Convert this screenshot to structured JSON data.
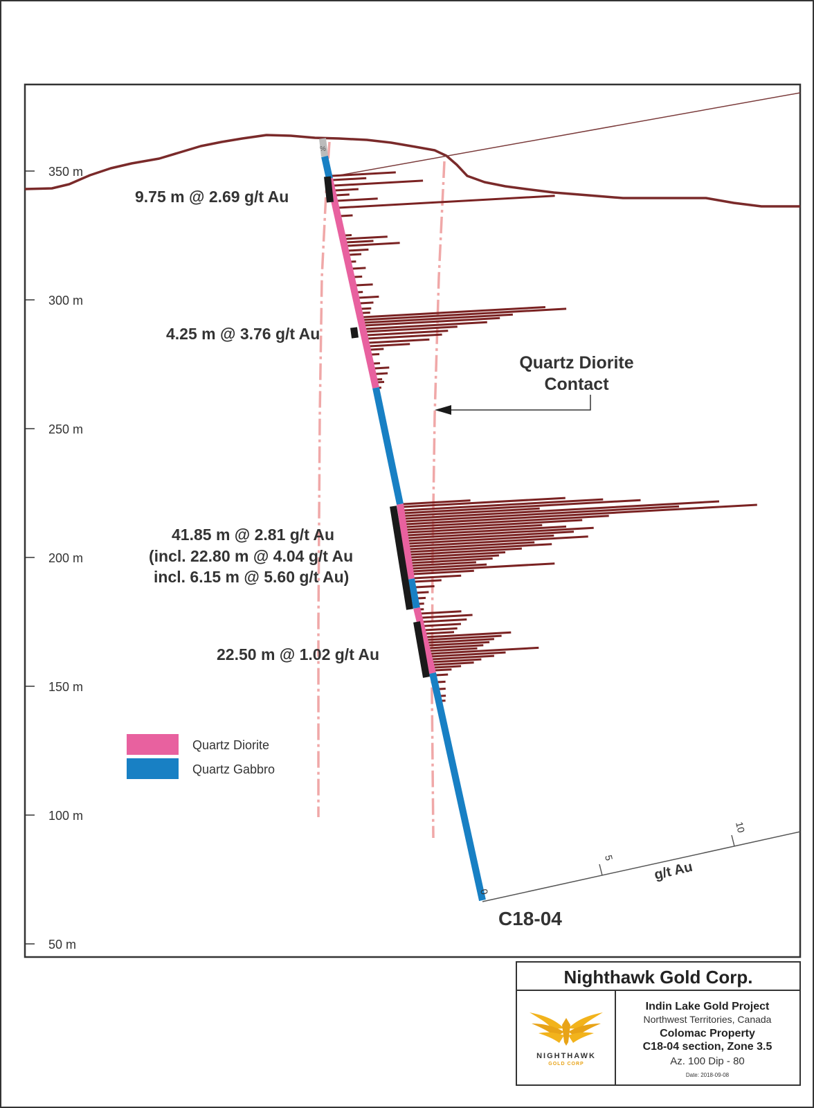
{
  "section": {
    "elevation_labels": [
      "350 m",
      "300 m",
      "250 m",
      "200 m",
      "150 m",
      "100 m",
      "50 m"
    ],
    "intercepts": [
      {
        "lines": [
          "9.75 m @ 2.69 g/t Au"
        ]
      },
      {
        "lines": [
          "4.25 m @ 3.76 g/t Au"
        ]
      },
      {
        "lines": [
          "41.85 m @ 2.81 g/t Au",
          "(incl. 22.80 m @ 4.04 g/t Au",
          "incl. 6.15 m @ 5.60 g/t Au)"
        ]
      },
      {
        "lines": [
          "22.50 m @ 1.02 g/t Au"
        ]
      }
    ],
    "contact_label": [
      "Quartz Diorite",
      "Contact"
    ],
    "hole_id": "C18-04",
    "collar_symbol": "%",
    "assay_scale": {
      "ticks": [
        "0",
        "5",
        "10"
      ],
      "unit": "g/t Au"
    },
    "legend": [
      {
        "label": "Quartz Diorite",
        "color": "#e8619f"
      },
      {
        "label": "Quartz Gabbro",
        "color": "#1880c4"
      }
    ],
    "colors": {
      "topography": "#7a2a2a",
      "assay_bar": "#7a2222",
      "contact_line": "#f0a8a8",
      "intercept_bar": "#1a1a1a",
      "frame": "#333333"
    }
  },
  "title_block": {
    "company": "Nighthawk Gold Corp.",
    "project": "Indin Lake Gold Project",
    "region": "Northwest Territories, Canada",
    "property": "Colomac Property",
    "section": "C18-04 section, Zone 3.5",
    "orientation": "Az. 100  Dip - 80",
    "date": "Date: 2018-09-08",
    "logo_name": "NIGHTHAWK",
    "logo_sub": "GOLD CORP"
  }
}
